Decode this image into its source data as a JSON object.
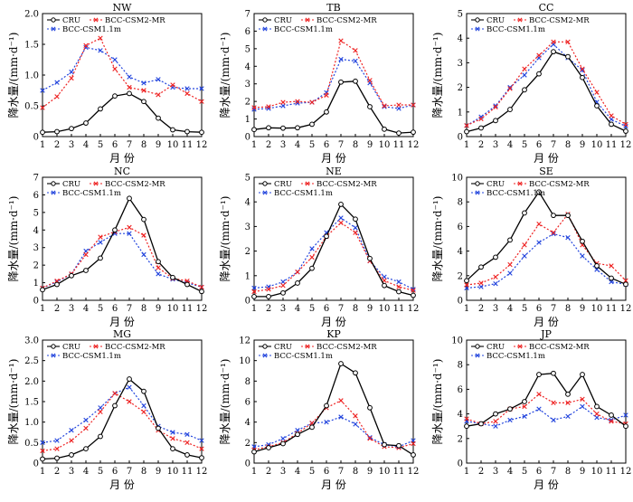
{
  "chart_data": [
    {
      "type": "line",
      "title": "NW",
      "xlabel": "月 份",
      "ylabel": "降水量/(mm·d⁻¹)",
      "ylim": [
        0,
        2.0
      ],
      "yticks": [
        "0",
        "0.5",
        "1.0",
        "1.5",
        "2.0"
      ],
      "categories": [
        "1",
        "2",
        "3",
        "4",
        "5",
        "6",
        "7",
        "8",
        "9",
        "10",
        "11",
        "12"
      ],
      "series": [
        {
          "name": "CRU",
          "values": [
            0.07,
            0.08,
            0.13,
            0.22,
            0.45,
            0.66,
            0.7,
            0.57,
            0.3,
            0.11,
            0.08,
            0.07
          ]
        },
        {
          "name": "BCC-CSM2-MR",
          "values": [
            0.47,
            0.65,
            0.95,
            1.48,
            1.6,
            1.1,
            0.8,
            0.75,
            0.68,
            0.84,
            0.7,
            0.57
          ]
        },
        {
          "name": "BCC-CSM1.1m",
          "values": [
            0.75,
            0.88,
            1.05,
            1.45,
            1.4,
            1.25,
            0.97,
            0.87,
            0.93,
            0.8,
            0.78,
            0.78
          ]
        }
      ]
    },
    {
      "type": "line",
      "title": "TB",
      "xlabel": "月 份",
      "ylabel": "降水量/(mm·d⁻¹)",
      "ylim": [
        0,
        7
      ],
      "yticks": [
        "0",
        "1",
        "2",
        "3",
        "4",
        "5",
        "6",
        "7"
      ],
      "categories": [
        "1",
        "2",
        "3",
        "4",
        "5",
        "6",
        "7",
        "8",
        "9",
        "10",
        "11",
        "12"
      ],
      "series": [
        {
          "name": "CRU",
          "values": [
            0.4,
            0.5,
            0.48,
            0.5,
            0.7,
            1.4,
            3.1,
            3.15,
            1.7,
            0.42,
            0.2,
            0.25
          ]
        },
        {
          "name": "BCC-CSM2-MR",
          "values": [
            1.65,
            1.7,
            1.95,
            2.0,
            1.95,
            2.35,
            5.45,
            4.9,
            3.2,
            1.75,
            1.8,
            1.8
          ]
        },
        {
          "name": "BCC-CSM1.1m",
          "values": [
            1.55,
            1.6,
            1.75,
            1.9,
            1.95,
            2.5,
            4.4,
            4.3,
            3.05,
            1.7,
            1.6,
            1.8
          ]
        }
      ]
    },
    {
      "type": "line",
      "title": "CC",
      "xlabel": "月 份",
      "ylabel": "降水量/(mm·d⁻¹)",
      "ylim": [
        0,
        5
      ],
      "yticks": [
        "0",
        "1",
        "2",
        "3",
        "4",
        "5"
      ],
      "categories": [
        "1",
        "2",
        "3",
        "4",
        "5",
        "6",
        "7",
        "8",
        "9",
        "10",
        "11",
        "12"
      ],
      "series": [
        {
          "name": "CRU",
          "values": [
            0.2,
            0.35,
            0.65,
            1.1,
            1.9,
            2.55,
            3.45,
            3.25,
            2.4,
            1.25,
            0.5,
            0.22
          ]
        },
        {
          "name": "BCC-CSM2-MR",
          "values": [
            0.45,
            0.72,
            1.2,
            1.95,
            2.75,
            3.3,
            3.85,
            3.85,
            2.75,
            1.8,
            0.85,
            0.5
          ]
        },
        {
          "name": "BCC-CSM1.1m",
          "values": [
            0.45,
            0.8,
            1.25,
            2.0,
            2.5,
            3.2,
            3.75,
            3.2,
            2.7,
            1.4,
            0.7,
            0.42
          ]
        }
      ]
    },
    {
      "type": "line",
      "title": "NC",
      "xlabel": "月 份",
      "ylabel": "降水量/(mm·d⁻¹)",
      "ylim": [
        0,
        7
      ],
      "yticks": [
        "0",
        "1",
        "2",
        "3",
        "4",
        "5",
        "6",
        "7"
      ],
      "categories": [
        "1",
        "2",
        "3",
        "4",
        "5",
        "6",
        "7",
        "8",
        "9",
        "10",
        "11",
        "12"
      ],
      "series": [
        {
          "name": "CRU",
          "values": [
            0.6,
            0.9,
            1.4,
            1.7,
            2.4,
            4.0,
            5.8,
            4.6,
            2.2,
            1.3,
            0.9,
            0.5
          ]
        },
        {
          "name": "BCC-CSM2-MR",
          "values": [
            0.7,
            1.1,
            1.5,
            2.6,
            3.6,
            3.9,
            4.15,
            3.7,
            1.85,
            1.25,
            1.1,
            0.75
          ]
        },
        {
          "name": "BCC-CSM1.1m",
          "values": [
            0.7,
            1.05,
            1.5,
            2.8,
            3.3,
            3.8,
            3.8,
            2.6,
            1.5,
            1.2,
            1.0,
            0.75
          ]
        }
      ]
    },
    {
      "type": "line",
      "title": "NE",
      "xlabel": "月 份",
      "ylabel": "降水量/(mm·d⁻¹)",
      "ylim": [
        0,
        5
      ],
      "yticks": [
        "0",
        "1",
        "2",
        "3",
        "4",
        "5"
      ],
      "categories": [
        "1",
        "2",
        "3",
        "4",
        "5",
        "6",
        "7",
        "8",
        "9",
        "10",
        "11",
        "12"
      ],
      "series": [
        {
          "name": "CRU",
          "values": [
            0.15,
            0.15,
            0.3,
            0.7,
            1.3,
            2.6,
            3.9,
            3.3,
            1.7,
            0.6,
            0.35,
            0.2
          ]
        },
        {
          "name": "BCC-CSM2-MR",
          "values": [
            0.35,
            0.45,
            0.6,
            1.15,
            1.75,
            2.6,
            3.15,
            2.75,
            1.6,
            0.8,
            0.55,
            0.4
          ]
        },
        {
          "name": "BCC-CSM1.1m",
          "values": [
            0.5,
            0.55,
            0.75,
            1.15,
            2.1,
            2.75,
            3.35,
            2.95,
            1.6,
            0.95,
            0.75,
            0.45
          ]
        }
      ]
    },
    {
      "type": "line",
      "title": "SE",
      "xlabel": "月 份",
      "ylabel": "降水量/(mm·d⁻¹)",
      "ylim": [
        0,
        10
      ],
      "yticks": [
        "0",
        "2",
        "4",
        "6",
        "8",
        "10"
      ],
      "categories": [
        "1",
        "2",
        "3",
        "4",
        "5",
        "6",
        "7",
        "8",
        "9",
        "10",
        "11",
        "12"
      ],
      "series": [
        {
          "name": "CRU",
          "values": [
            1.6,
            2.7,
            3.5,
            4.9,
            7.1,
            8.8,
            6.9,
            6.9,
            4.8,
            2.8,
            1.8,
            1.3
          ]
        },
        {
          "name": "BCC-CSM2-MR",
          "values": [
            1.25,
            1.4,
            1.9,
            2.9,
            4.5,
            6.2,
            5.5,
            7.0,
            4.5,
            3.0,
            2.8,
            1.6
          ]
        },
        {
          "name": "BCC-CSM1.1m",
          "values": [
            1.0,
            1.1,
            1.35,
            2.2,
            3.6,
            4.7,
            5.4,
            5.1,
            3.6,
            2.5,
            1.5,
            1.3
          ]
        }
      ]
    },
    {
      "type": "line",
      "title": "MG",
      "xlabel": "月 份",
      "ylabel": "降水量/(mm·d⁻¹)",
      "ylim": [
        0,
        3.0
      ],
      "yticks": [
        "0",
        "0.5",
        "1.0",
        "1.5",
        "2.0",
        "2.5",
        "3.0"
      ],
      "categories": [
        "1",
        "2",
        "3",
        "4",
        "5",
        "6",
        "7",
        "8",
        "9",
        "10",
        "11",
        "12"
      ],
      "series": [
        {
          "name": "CRU",
          "values": [
            0.1,
            0.12,
            0.2,
            0.35,
            0.65,
            1.4,
            2.05,
            1.75,
            0.85,
            0.35,
            0.2,
            0.13
          ]
        },
        {
          "name": "BCC-CSM2-MR",
          "values": [
            0.3,
            0.35,
            0.55,
            0.85,
            1.25,
            1.7,
            1.5,
            1.25,
            0.8,
            0.6,
            0.5,
            0.35
          ]
        },
        {
          "name": "BCC-CSM1.1m",
          "values": [
            0.5,
            0.55,
            0.8,
            1.05,
            1.35,
            1.7,
            1.85,
            1.4,
            0.9,
            0.75,
            0.7,
            0.55
          ]
        }
      ]
    },
    {
      "type": "line",
      "title": "KP",
      "xlabel": "月 份",
      "ylabel": "降水量/(mm·d⁻¹)",
      "ylim": [
        0,
        12
      ],
      "yticks": [
        "0",
        "2",
        "4",
        "6",
        "8",
        "10",
        "12"
      ],
      "categories": [
        "1",
        "2",
        "3",
        "4",
        "5",
        "6",
        "7",
        "8",
        "9",
        "10",
        "11",
        "12"
      ],
      "series": [
        {
          "name": "CRU",
          "values": [
            1.1,
            1.5,
            1.9,
            2.8,
            3.5,
            5.6,
            9.7,
            8.8,
            5.4,
            1.8,
            1.7,
            0.8
          ]
        },
        {
          "name": "BCC-CSM2-MR",
          "values": [
            1.3,
            1.6,
            2.0,
            2.9,
            3.9,
            5.4,
            6.1,
            4.6,
            2.4,
            1.6,
            1.5,
            1.9
          ]
        },
        {
          "name": "BCC-CSM1.1m",
          "values": [
            1.6,
            1.8,
            2.4,
            3.2,
            3.9,
            4.0,
            4.5,
            3.8,
            2.5,
            1.8,
            1.6,
            2.2
          ]
        }
      ]
    },
    {
      "type": "line",
      "title": "JP",
      "xlabel": "月 份",
      "ylabel": "降水量/(mm·d⁻¹)",
      "ylim": [
        0,
        10
      ],
      "yticks": [
        "0",
        "2",
        "4",
        "6",
        "8",
        "10"
      ],
      "categories": [
        "1",
        "2",
        "3",
        "4",
        "5",
        "6",
        "7",
        "8",
        "9",
        "10",
        "11",
        "12"
      ],
      "series": [
        {
          "name": "CRU",
          "values": [
            3.0,
            3.2,
            4.0,
            4.4,
            5.0,
            7.2,
            7.3,
            5.6,
            7.2,
            4.6,
            3.9,
            3.0
          ]
        },
        {
          "name": "BCC-CSM2-MR",
          "values": [
            3.6,
            3.2,
            3.4,
            4.4,
            4.6,
            5.6,
            4.9,
            4.9,
            5.2,
            4.0,
            3.4,
            3.2
          ]
        },
        {
          "name": "BCC-CSM1.1m",
          "values": [
            3.4,
            3.2,
            3.0,
            3.5,
            3.8,
            4.4,
            3.5,
            3.8,
            4.6,
            3.7,
            3.5,
            3.9
          ]
        }
      ]
    }
  ],
  "styles": {
    "CRU": {
      "color": "#000000",
      "marker": "circle",
      "dash": ""
    },
    "BCC-CSM2-MR": {
      "color": "#ee2222",
      "marker": "cross",
      "dash": "2,2"
    },
    "BCC-CSM1.1m": {
      "color": "#2244dd",
      "marker": "cross",
      "dash": "2,2"
    }
  }
}
